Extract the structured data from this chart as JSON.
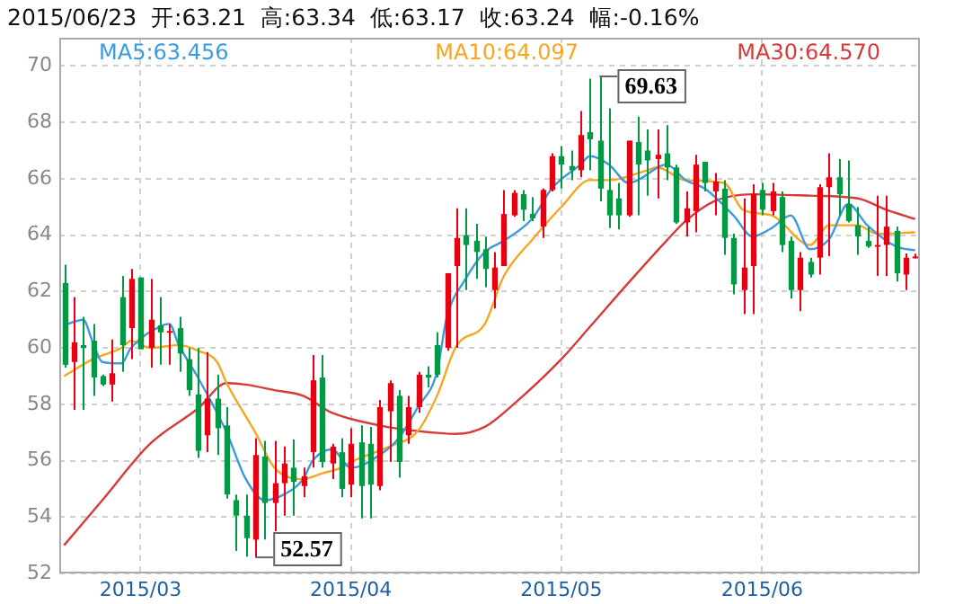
{
  "chart_data": {
    "type": "candlestick",
    "title": "2015/06/23  开:63.21  高:63.34  低:63.17  收:63.24  幅:-0.16%",
    "categories": [
      null,
      null,
      null,
      null,
      null,
      null,
      null,
      null,
      "2015/03",
      null,
      null,
      null,
      null,
      null,
      null,
      null,
      null,
      null,
      null,
      null,
      null,
      null,
      null,
      null,
      null,
      null,
      null,
      null,
      null,
      null,
      "2015/04",
      null,
      null,
      null,
      null,
      null,
      null,
      null,
      null,
      null,
      null,
      null,
      null,
      null,
      null,
      null,
      null,
      null,
      null,
      null,
      null,
      null,
      "2015/05",
      null,
      null,
      null,
      null,
      null,
      null,
      null,
      null,
      null,
      null,
      null,
      null,
      null,
      null,
      null,
      null,
      null,
      null,
      null,
      null,
      "2015/06",
      null,
      null,
      null,
      null,
      null,
      null,
      null,
      null,
      null,
      null,
      null,
      null,
      null,
      null,
      null,
      null
    ],
    "ohlc": [
      [
        62.3,
        62.95,
        59.3,
        59.4
      ],
      [
        59.5,
        61.8,
        57.8,
        60.2
      ],
      [
        60.1,
        61.1,
        57.8,
        60.0
      ],
      [
        60.25,
        60.85,
        58.3,
        58.95
      ],
      [
        59.0,
        59.05,
        58.65,
        58.7
      ],
      [
        58.7,
        60.3,
        58.1,
        59.1
      ],
      [
        61.8,
        62.55,
        59.15,
        60.1
      ],
      [
        60.7,
        62.8,
        59.6,
        62.45
      ],
      [
        62.5,
        62.5,
        59.95,
        59.95
      ],
      [
        60.0,
        62.45,
        59.3,
        61.0
      ],
      [
        60.8,
        61.8,
        59.4,
        60.55
      ],
      [
        60.55,
        60.85,
        59.4,
        60.6
      ],
      [
        60.7,
        61.1,
        59.15,
        59.8
      ],
      [
        59.6,
        60.0,
        58.3,
        58.5
      ],
      [
        58.35,
        60.0,
        56.1,
        56.35
      ],
      [
        56.9,
        59.85,
        56.3,
        58.2
      ],
      [
        58.2,
        59.05,
        56.2,
        57.15
      ],
      [
        57.25,
        57.9,
        54.65,
        54.8
      ],
      [
        54.6,
        54.8,
        52.8,
        54.05
      ],
      [
        54.05,
        54.8,
        52.6,
        53.25
      ],
      [
        53.2,
        56.8,
        52.57,
        56.2
      ],
      [
        56.15,
        56.7,
        53.2,
        54.5
      ],
      [
        54.5,
        56.7,
        53.5,
        55.2
      ],
      [
        55.2,
        56.5,
        54.05,
        55.9
      ],
      [
        55.75,
        56.75,
        54.05,
        55.25
      ],
      [
        55.1,
        55.75,
        54.7,
        55.45
      ],
      [
        56.3,
        59.75,
        55.75,
        58.85
      ],
      [
        58.95,
        59.75,
        55.75,
        55.95
      ],
      [
        55.9,
        56.6,
        55.35,
        56.5
      ],
      [
        56.3,
        56.8,
        54.7,
        55.0
      ],
      [
        55.15,
        57.15,
        54.7,
        56.6
      ],
      [
        56.65,
        57.25,
        53.95,
        55.1
      ],
      [
        56.6,
        57.2,
        53.95,
        55.15
      ],
      [
        55.1,
        58.15,
        54.95,
        57.9
      ],
      [
        57.75,
        58.85,
        55.95,
        58.75
      ],
      [
        58.3,
        58.5,
        55.4,
        55.95
      ],
      [
        56.9,
        58.3,
        56.6,
        57.9
      ],
      [
        57.9,
        59.15,
        57.7,
        59.05
      ],
      [
        59.05,
        59.35,
        58.6,
        58.95
      ],
      [
        60.1,
        60.55,
        58.95,
        59.05
      ],
      [
        60.0,
        62.65,
        59.9,
        62.65
      ],
      [
        62.9,
        64.95,
        60.0,
        63.9
      ],
      [
        64.0,
        64.95,
        62.05,
        63.65
      ],
      [
        63.8,
        64.4,
        62.45,
        63.4
      ],
      [
        63.5,
        63.95,
        62.15,
        62.8
      ],
      [
        62.05,
        63.4,
        61.4,
        62.85
      ],
      [
        62.9,
        65.6,
        62.9,
        64.75
      ],
      [
        64.7,
        65.6,
        64.65,
        65.5
      ],
      [
        65.45,
        65.6,
        64.5,
        64.9
      ],
      [
        64.75,
        65.35,
        64.5,
        64.6
      ],
      [
        64.3,
        65.65,
        63.9,
        65.6
      ],
      [
        65.6,
        66.9,
        65.55,
        66.8
      ],
      [
        66.8,
        67.15,
        65.65,
        66.5
      ],
      [
        66.45,
        67.0,
        65.95,
        66.3
      ],
      [
        66.3,
        68.4,
        66.05,
        67.55
      ],
      [
        67.65,
        69.55,
        66.3,
        67.4
      ],
      [
        67.35,
        69.63,
        65.2,
        65.65
      ],
      [
        65.6,
        68.5,
        64.25,
        64.7
      ],
      [
        65.3,
        65.85,
        64.2,
        64.7
      ],
      [
        64.7,
        67.35,
        64.65,
        67.35
      ],
      [
        67.3,
        68.2,
        64.7,
        66.5
      ],
      [
        67.0,
        67.75,
        65.4,
        66.65
      ],
      [
        66.7,
        67.75,
        65.3,
        66.85
      ],
      [
        66.9,
        67.9,
        65.95,
        66.4
      ],
      [
        66.4,
        66.5,
        64.4,
        64.45
      ],
      [
        64.45,
        65.55,
        63.95,
        64.95
      ],
      [
        64.85,
        66.85,
        64.1,
        66.5
      ],
      [
        66.6,
        66.6,
        65.55,
        65.85
      ],
      [
        65.55,
        66.2,
        64.7,
        65.9
      ],
      [
        65.65,
        65.95,
        63.3,
        63.9
      ],
      [
        63.9,
        64.05,
        61.9,
        62.25
      ],
      [
        62.05,
        65.3,
        61.2,
        62.85
      ],
      [
        62.9,
        65.8,
        61.2,
        65.45
      ],
      [
        65.6,
        65.85,
        64.7,
        64.9
      ],
      [
        64.85,
        65.85,
        64.7,
        65.55
      ],
      [
        65.35,
        65.55,
        63.4,
        63.65
      ],
      [
        63.8,
        63.95,
        61.75,
        62.05
      ],
      [
        62.05,
        63.4,
        61.3,
        63.2
      ],
      [
        63.05,
        63.2,
        62.5,
        62.6
      ],
      [
        63.2,
        65.8,
        62.6,
        65.7
      ],
      [
        65.7,
        66.9,
        63.25,
        66.05
      ],
      [
        66.05,
        66.7,
        64.7,
        65.45
      ],
      [
        65.1,
        66.65,
        64.45,
        64.5
      ],
      [
        64.35,
        65.0,
        63.3,
        63.95
      ],
      [
        63.8,
        64.3,
        63.55,
        63.6
      ],
      [
        63.6,
        65.4,
        62.55,
        63.65
      ],
      [
        63.65,
        65.4,
        62.55,
        64.3
      ],
      [
        64.15,
        64.3,
        62.35,
        62.65
      ],
      [
        62.6,
        63.35,
        62.05,
        63.2
      ],
      [
        63.21,
        63.34,
        63.17,
        63.24
      ]
    ],
    "colors": [
      "#009944",
      "#e60012",
      "#009944",
      "#009944",
      "#009944",
      "#e60012",
      "#009944",
      "#e60012",
      "#009944",
      "#e60012",
      "#009944",
      "#e60012",
      "#009944",
      "#009944",
      "#009944",
      "#e60012",
      "#009944",
      "#009944",
      "#009944",
      "#009944",
      "#e60012",
      "#009944",
      "#e60012",
      "#e60012",
      "#009944",
      "#e60012",
      "#e60012",
      "#009944",
      "#e60012",
      "#009944",
      "#e60012",
      "#009944",
      "#009944",
      "#e60012",
      "#e60012",
      "#009944",
      "#e60012",
      "#e60012",
      "#009944",
      "#009944",
      "#e60012",
      "#e60012",
      "#009944",
      "#009944",
      "#009944",
      "#e60012",
      "#e60012",
      "#e60012",
      "#009944",
      "#009944",
      "#e60012",
      "#e60012",
      "#009944",
      "#009944",
      "#e60012",
      "#009944",
      "#009944",
      "#009944",
      "#009944",
      "#e60012",
      "#009944",
      "#009944",
      "#e60012",
      "#009944",
      "#009944",
      "#e60012",
      "#e60012",
      "#009944",
      "#e60012",
      "#009944",
      "#009944",
      "#e60012",
      "#e60012",
      "#009944",
      "#e60012",
      "#009944",
      "#009944",
      "#e60012",
      "#009944",
      "#e60012",
      "#e60012",
      "#009944",
      "#009944",
      "#009944",
      "#009944",
      "#e60012",
      "#e60012",
      "#009944",
      "#e60012",
      "#e60012"
    ],
    "series": [
      {
        "name": "MA5:63.456",
        "type": "line",
        "color": "#3a9be0",
        "values": [
          60.8,
          null,
          61.0,
          60.2,
          59.5,
          null,
          59.45,
          60.0,
          null,
          null,
          60.75,
          60.85,
          60.1,
          null,
          58.95,
          null,
          null,
          57.0,
          null,
          55.35,
          null,
          54.6,
          null,
          54.8,
          null,
          55.35,
          56.0,
          null,
          56.4,
          null,
          55.75,
          null,
          null,
          56.2,
          null,
          56.8,
          null,
          57.9,
          null,
          59.15,
          61.05,
          null,
          62.45,
          null,
          63.4,
          null,
          63.8,
          null,
          null,
          64.6,
          null,
          65.65,
          null,
          null,
          66.5,
          66.8,
          null,
          66.5,
          null,
          65.85,
          65.95,
          null,
          null,
          66.5,
          null,
          65.95,
          null,
          65.65,
          null,
          null,
          64.7,
          null,
          63.95,
          null,
          64.25,
          null,
          64.7,
          null,
          63.5,
          null,
          63.85,
          null,
          65.1,
          null,
          64.35,
          null,
          null,
          63.6,
          null,
          63.46
        ]
      },
      {
        "name": "MA10:64.097",
        "type": "line",
        "color": "#f5a623",
        "values": [
          59.0,
          null,
          null,
          59.6,
          null,
          null,
          60.0,
          60.25,
          null,
          60.0,
          null,
          null,
          60.1,
          null,
          59.9,
          null,
          59.5,
          58.75,
          null,
          null,
          57.0,
          null,
          55.75,
          null,
          null,
          55.35,
          null,
          55.55,
          null,
          55.75,
          55.95,
          null,
          null,
          null,
          56.5,
          null,
          null,
          57.05,
          null,
          58.3,
          null,
          60.05,
          null,
          null,
          60.85,
          null,
          62.55,
          null,
          null,
          63.85,
          null,
          null,
          65.0,
          null,
          null,
          65.95,
          null,
          65.95,
          null,
          null,
          null,
          66.3,
          66.4,
          null,
          null,
          65.95,
          null,
          null,
          null,
          65.85,
          null,
          64.9,
          null,
          null,
          64.7,
          null,
          null,
          null,
          63.65,
          null,
          64.35,
          null,
          null,
          64.35,
          null,
          64.05,
          null,
          null,
          null,
          64.1
        ]
      },
      {
        "name": "MA30:64.570",
        "type": "line",
        "color": "#d63a3a",
        "values": [
          53.0,
          null,
          null,
          null,
          54.6,
          null,
          null,
          null,
          null,
          56.6,
          null,
          null,
          null,
          null,
          57.85,
          null,
          null,
          58.75,
          null,
          58.7,
          null,
          null,
          58.5,
          null,
          null,
          58.3,
          null,
          null,
          57.7,
          null,
          null,
          null,
          null,
          57.25,
          null,
          null,
          null,
          57.05,
          null,
          null,
          null,
          56.95,
          null,
          null,
          57.2,
          null,
          null,
          58.0,
          null,
          null,
          null,
          null,
          59.6,
          null,
          null,
          60.75,
          null,
          null,
          null,
          62.3,
          null,
          null,
          null,
          63.8,
          null,
          64.5,
          null,
          null,
          65.2,
          null,
          null,
          null,
          65.45,
          null,
          null,
          null,
          null,
          null,
          65.4,
          null,
          null,
          null,
          null,
          65.3,
          null,
          null,
          64.9,
          null,
          null,
          64.57
        ]
      }
    ],
    "ylim": [
      52,
      71
    ],
    "yticks": [
      52,
      54,
      56,
      58,
      60,
      62,
      64,
      66,
      68,
      70
    ],
    "grid": true,
    "legend": "top",
    "marker": "none",
    "annotations": [
      "69.63",
      "52.57"
    ]
  }
}
